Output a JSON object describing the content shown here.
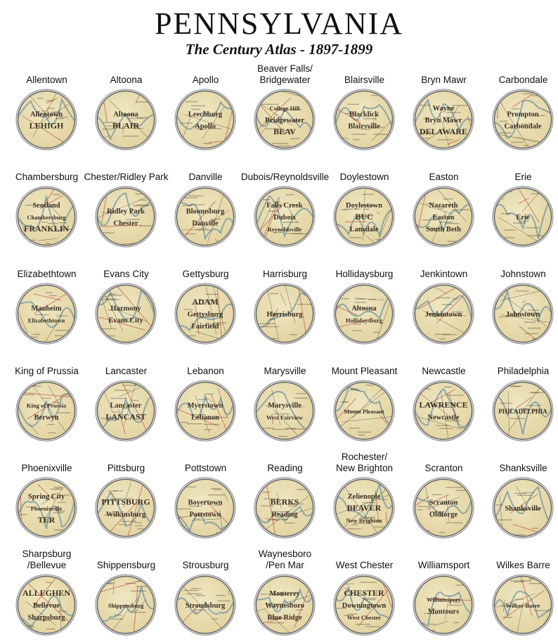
{
  "header": {
    "title": "PENNSYLVANIA",
    "subtitle": "The Century Atlas - 1897-1899"
  },
  "colors": {
    "map_paper": "#efe7c2",
    "map_paper_dark": "#e2d3a0",
    "map_road": "#b84a3a",
    "map_river": "#6a8fa0",
    "map_text": "#3a2e22",
    "bezel": "#b9b9b9",
    "bezel_dark": "#7f7f7f"
  },
  "maps": [
    {
      "label": "Allentown",
      "map_text": [
        "Allentown",
        "LEHIGH"
      ]
    },
    {
      "label": "Altoona",
      "map_text": [
        "Altoona",
        "BLAIR"
      ]
    },
    {
      "label": "Apollo",
      "map_text": [
        "Leechburg",
        "Apollo"
      ]
    },
    {
      "label": "Beaver Falls/\nBridgewater",
      "map_text": [
        "College Hill",
        "Bridgewater",
        "BEAV"
      ]
    },
    {
      "label": "Blairsville",
      "map_text": [
        "Blacklick",
        "Blairsville"
      ]
    },
    {
      "label": "Bryn Mawr",
      "map_text": [
        "Wayne",
        "Bryn Mawr",
        "DELAWARE"
      ]
    },
    {
      "label": "Carbondale",
      "map_text": [
        "Prompton",
        "Carbondale"
      ]
    },
    {
      "label": "Chambersburg",
      "map_text": [
        "Scotland",
        "Chambersburg",
        "FRANKLIN"
      ]
    },
    {
      "label": "Chester/Ridley Park",
      "map_text": [
        "Ridley Park",
        "Chester"
      ]
    },
    {
      "label": "Danville",
      "map_text": [
        "Bloomsburg",
        "Danville"
      ]
    },
    {
      "label": "Dubois/Reynoldsville",
      "map_text": [
        "Falls Creek",
        "Dubois",
        "Reynoldsville"
      ]
    },
    {
      "label": "Doylestown",
      "map_text": [
        "Doylestown",
        "BUC",
        "Lansdale"
      ]
    },
    {
      "label": "Easton",
      "map_text": [
        "Nazareth",
        "Easton",
        "South Beth"
      ]
    },
    {
      "label": "Erie",
      "map_text": [
        "Erie"
      ]
    },
    {
      "label": "Elizabethtown",
      "map_text": [
        "Manheim",
        "Elizabethtown"
      ]
    },
    {
      "label": "Evans City",
      "map_text": [
        "Harmony",
        "Evans City"
      ]
    },
    {
      "label": "Gettysburg",
      "map_text": [
        "ADAM",
        "Gettysburg",
        "Fairfield"
      ]
    },
    {
      "label": "Harrisburg",
      "map_text": [
        "Harrisburg"
      ]
    },
    {
      "label": "Hollidaysburg",
      "map_text": [
        "Altoona",
        "Hollidaysburg"
      ]
    },
    {
      "label": "Jenkintown",
      "map_text": [
        "Jenkintown"
      ]
    },
    {
      "label": "Johnstown",
      "map_text": [
        "Johnstown"
      ]
    },
    {
      "label": "King of Prussia",
      "map_text": [
        "King of Prussia",
        "Berwyn"
      ]
    },
    {
      "label": "Lancaster",
      "map_text": [
        "Lancaster",
        "LANCAST"
      ]
    },
    {
      "label": "Lebanon",
      "map_text": [
        "Myerstown",
        "Lebanon"
      ]
    },
    {
      "label": "Marysville",
      "map_text": [
        "Marysville",
        "West Fairview"
      ]
    },
    {
      "label": "Mount Pleasant",
      "map_text": [
        "Mount Pleasant"
      ]
    },
    {
      "label": "Newcastle",
      "map_text": [
        "LAWRENCE",
        "Newcastle"
      ]
    },
    {
      "label": "Philadelphia",
      "map_text": [
        "PHILADELPHIA"
      ]
    },
    {
      "label": "Phoenixville",
      "map_text": [
        "Spring City",
        "Phoenixville",
        "TER"
      ]
    },
    {
      "label": "Pittsburg",
      "map_text": [
        "PITTSBURG",
        "Wilkinsburg"
      ]
    },
    {
      "label": "Pottstown",
      "map_text": [
        "Boyertown",
        "Pottstown"
      ]
    },
    {
      "label": "Reading",
      "map_text": [
        "BERKS",
        "Reading"
      ]
    },
    {
      "label": "Rochester/\nNew Brighton",
      "map_text": [
        "Zelienople",
        "BEAVER",
        "New Brighton"
      ]
    },
    {
      "label": "Scranton",
      "map_text": [
        "Scranton",
        "Oldforge"
      ]
    },
    {
      "label": "Shanksville",
      "map_text": [
        "Shanksville"
      ]
    },
    {
      "label": "Sharpsburg\n/Bellevue",
      "map_text": [
        "ALLEGHEN",
        "Bellevue",
        "Sharpsburg"
      ]
    },
    {
      "label": "Shippensburg",
      "map_text": [
        "Shippensburg"
      ]
    },
    {
      "label": "Strousburg",
      "map_text": [
        "Stroudsburg"
      ]
    },
    {
      "label": "Waynesboro\n/Pen Mar",
      "map_text": [
        "Monterey",
        "Waynesboro",
        "Blue Ridge"
      ]
    },
    {
      "label": "West Chester",
      "map_text": [
        "CHESTER",
        "Downingtown",
        "West Chester"
      ]
    },
    {
      "label": "Williamsport",
      "map_text": [
        "Williamsport",
        "Montours"
      ]
    },
    {
      "label": "Wilkes Barre",
      "map_text": [
        "Wilkes-Barre"
      ]
    }
  ]
}
